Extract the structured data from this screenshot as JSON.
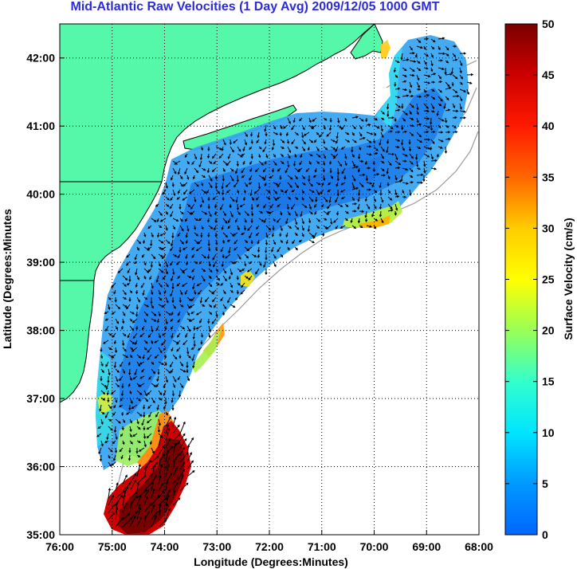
{
  "chart_data": {
    "type": "heatmap",
    "title": "Mid-Atlantic Raw Velocities (1 Day Avg) 2009/12/05 1000 GMT",
    "xlabel": "Longitude (Degrees:Minutes)",
    "ylabel": "Latitude (Degrees:Minutes",
    "x_ticks": [
      "76:00",
      "75:00",
      "74:00",
      "73:00",
      "72:00",
      "71:00",
      "70:00",
      "69:00",
      "68:00"
    ],
    "y_ticks": [
      "35:00",
      "36:00",
      "37:00",
      "38:00",
      "39:00",
      "40:00",
      "41:00",
      "42:00"
    ],
    "xlim": [
      -76,
      -68
    ],
    "ylim": [
      35,
      42.5
    ],
    "grid": true,
    "colorbar": {
      "label": "Surface Velocity (cm/s)",
      "ticks": [
        "0",
        "5",
        "10",
        "15",
        "20",
        "25",
        "30",
        "35",
        "40",
        "45",
        "50"
      ],
      "range": [
        0,
        50
      ]
    },
    "colors": {
      "land": "#55f7a8",
      "coastline": "#000000",
      "bathymetry": "#9a9a9a",
      "title": "#2b2bd9"
    }
  }
}
